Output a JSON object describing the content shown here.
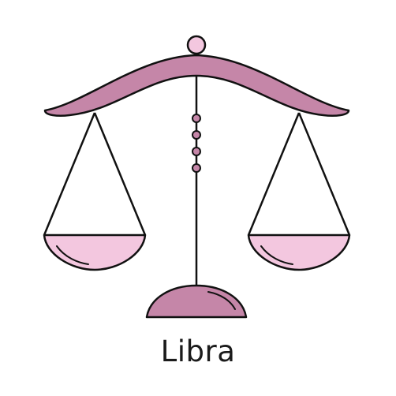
{
  "illustration": {
    "icon": "libra-scales-icon",
    "caption": "Libra"
  },
  "colors": {
    "beam_fill": "#c586a8",
    "pan_fill": "#f3c7df",
    "base_fill": "#c586a8",
    "bead_fill": "#c586a8",
    "stroke": "#111111",
    "background": "#ffffff"
  }
}
